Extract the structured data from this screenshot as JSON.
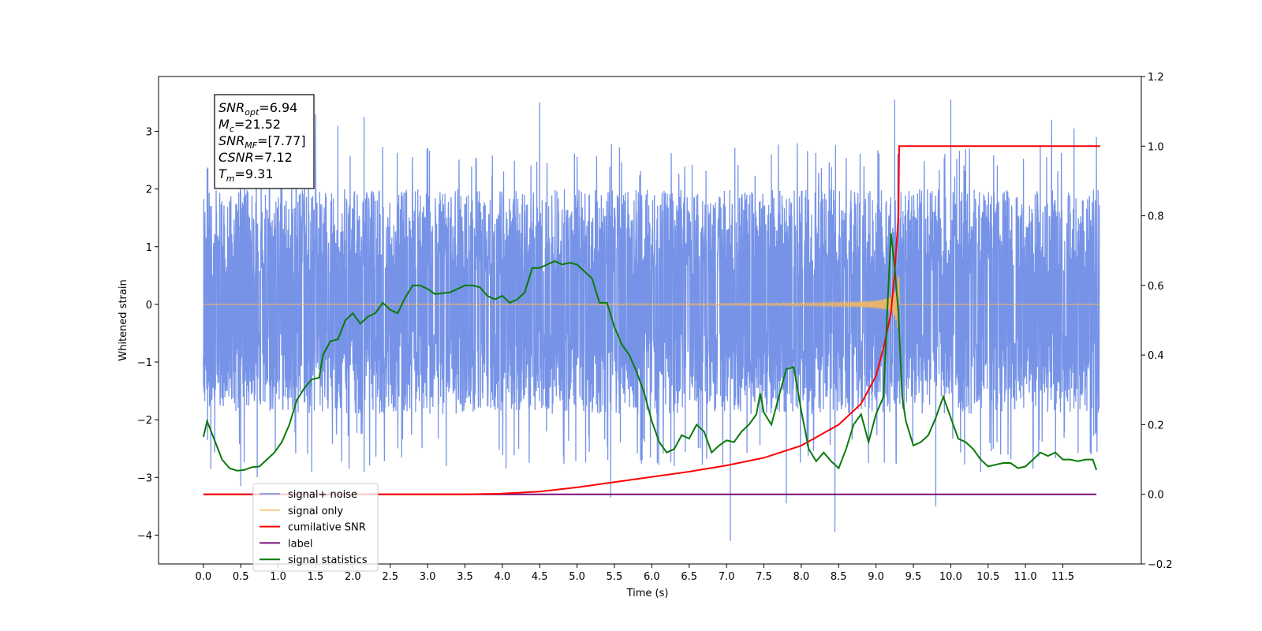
{
  "chart_data": {
    "type": "line",
    "title": "",
    "xlabel": "Time (s)",
    "ylabel": "Whitened strain",
    "xlim": [
      -0.6,
      12.55
    ],
    "ylim": [
      -4.5,
      3.95
    ],
    "y2lim": [
      -0.2,
      1.2
    ],
    "grid": false,
    "legend_position": "lower-left",
    "x_ticks": [
      0.0,
      0.5,
      1.0,
      1.5,
      2.0,
      2.5,
      3.0,
      3.5,
      4.0,
      4.5,
      5.0,
      5.5,
      6.0,
      6.5,
      7.0,
      7.5,
      8.0,
      8.5,
      9.0,
      9.5,
      10.0,
      10.5,
      11.0,
      11.5
    ],
    "x_tick_labels": [
      "0.0",
      "0.5",
      "1.0",
      "1.5",
      "2.0",
      "2.5",
      "3.0",
      "3.5",
      "4.0",
      "4.5",
      "5.0",
      "5.5",
      "6.0",
      "6.5",
      "7.0",
      "7.5",
      "8.0",
      "8.5",
      "9.0",
      "9.5",
      "10.0",
      "10.5",
      "11.0",
      "11.5"
    ],
    "y_ticks": [
      3,
      2,
      1,
      0,
      -1,
      -2,
      -3,
      -4
    ],
    "y_tick_labels": [
      "3",
      "2",
      "1",
      "0",
      "−1",
      "−2",
      "−3",
      "−4"
    ],
    "y2_ticks": [
      1.2,
      1.0,
      0.8,
      0.6,
      0.4,
      0.2,
      0.0,
      -0.2
    ],
    "y2_tick_labels": [
      "1.2",
      "1.0",
      "0.8",
      "0.6",
      "0.4",
      "0.2",
      "0.0",
      "−0.2"
    ],
    "series": [
      {
        "name": "signal+ noise",
        "axis": "left",
        "color": "#6f8de6",
        "description_points": {
          "envelope_upper": 2.0,
          "envelope_lower": -1.9,
          "spikes_up": [
            [
              0.05,
              2.35
            ],
            [
              0.55,
              2.85
            ],
            [
              1.05,
              2.9
            ],
            [
              1.5,
              3.3
            ],
            [
              1.8,
              3.1
            ],
            [
              2.15,
              3.25
            ],
            [
              4.5,
              3.5
            ],
            [
              7.6,
              2.6
            ],
            [
              9.25,
              3.55
            ],
            [
              10.0,
              3.55
            ],
            [
              11.35,
              3.2
            ],
            [
              11.65,
              3.05
            ],
            [
              11.95,
              2.9
            ]
          ],
          "spikes_down": [
            [
              0.1,
              -2.85
            ],
            [
              0.5,
              -3.15
            ],
            [
              0.72,
              -3.0
            ],
            [
              1.45,
              -2.9
            ],
            [
              1.95,
              -2.85
            ],
            [
              2.15,
              -2.9
            ],
            [
              3.25,
              -2.8
            ],
            [
              4.05,
              -2.85
            ],
            [
              5.45,
              -3.35
            ],
            [
              5.85,
              -2.7
            ],
            [
              6.3,
              -2.8
            ],
            [
              7.05,
              -4.1
            ],
            [
              7.8,
              -3.45
            ],
            [
              8.45,
              -3.95
            ],
            [
              8.9,
              -2.75
            ],
            [
              9.8,
              -3.5
            ],
            [
              10.4,
              -2.9
            ],
            [
              11.1,
              -2.85
            ]
          ]
        }
      },
      {
        "name": "signal only",
        "axis": "left",
        "color": "#f5b85f",
        "chirp_start": 0.0,
        "chirp_merger": 9.31,
        "peak_amplitude": 0.5
      },
      {
        "name": "cumilative SNR",
        "axis": "right",
        "color": "#ff0000",
        "x": [
          0.0,
          3.0,
          3.5,
          4.0,
          4.5,
          5.0,
          5.5,
          6.0,
          6.5,
          7.0,
          7.5,
          8.0,
          8.5,
          8.8,
          9.0,
          9.1,
          9.2,
          9.25,
          9.3,
          9.31,
          9.5,
          10.0,
          11.0,
          12.0
        ],
        "y": [
          0.0,
          0.0,
          0.0,
          0.002,
          0.008,
          0.02,
          0.035,
          0.05,
          0.065,
          0.083,
          0.105,
          0.14,
          0.2,
          0.26,
          0.34,
          0.42,
          0.52,
          0.64,
          0.8,
          1.0,
          1.0,
          1.0,
          1.0,
          1.0
        ]
      },
      {
        "name": "label",
        "axis": "right",
        "color": "#7b0f7b",
        "x": [
          0.0,
          11.95
        ],
        "y": [
          0.0,
          0.0
        ]
      },
      {
        "name": "signal statistics",
        "axis": "right",
        "color": "#0a7a0a",
        "x": [
          0.0,
          0.05,
          0.15,
          0.25,
          0.35,
          0.45,
          0.55,
          0.65,
          0.75,
          0.85,
          0.95,
          1.05,
          1.15,
          1.25,
          1.35,
          1.45,
          1.55,
          1.6,
          1.7,
          1.8,
          1.9,
          2.0,
          2.1,
          2.2,
          2.3,
          2.4,
          2.5,
          2.6,
          2.7,
          2.8,
          2.9,
          3.0,
          3.1,
          3.2,
          3.3,
          3.4,
          3.5,
          3.6,
          3.7,
          3.8,
          3.9,
          4.0,
          4.1,
          4.2,
          4.3,
          4.4,
          4.5,
          4.6,
          4.7,
          4.8,
          4.9,
          5.0,
          5.1,
          5.2,
          5.3,
          5.4,
          5.5,
          5.6,
          5.7,
          5.8,
          5.9,
          6.0,
          6.1,
          6.2,
          6.3,
          6.4,
          6.5,
          6.6,
          6.7,
          6.8,
          6.9,
          7.0,
          7.1,
          7.2,
          7.3,
          7.4,
          7.45,
          7.5,
          7.6,
          7.7,
          7.8,
          7.9,
          8.0,
          8.1,
          8.2,
          8.3,
          8.4,
          8.5,
          8.6,
          8.7,
          8.8,
          8.9,
          9.0,
          9.1,
          9.15,
          9.2,
          9.25,
          9.3,
          9.35,
          9.4,
          9.5,
          9.6,
          9.7,
          9.8,
          9.9,
          10.0,
          10.1,
          10.2,
          10.3,
          10.4,
          10.5,
          10.6,
          10.7,
          10.8,
          10.9,
          11.0,
          11.1,
          11.2,
          11.3,
          11.4,
          11.5,
          11.6,
          11.7,
          11.8,
          11.9,
          11.95
        ],
        "y": [
          0.165,
          0.21,
          0.155,
          0.1,
          0.075,
          0.068,
          0.07,
          0.078,
          0.08,
          0.1,
          0.12,
          0.15,
          0.2,
          0.27,
          0.305,
          0.33,
          0.335,
          0.4,
          0.44,
          0.445,
          0.5,
          0.52,
          0.49,
          0.51,
          0.52,
          0.55,
          0.53,
          0.52,
          0.565,
          0.6,
          0.6,
          0.59,
          0.575,
          0.578,
          0.58,
          0.59,
          0.6,
          0.6,
          0.595,
          0.57,
          0.56,
          0.57,
          0.55,
          0.56,
          0.58,
          0.65,
          0.65,
          0.66,
          0.67,
          0.66,
          0.665,
          0.66,
          0.64,
          0.62,
          0.55,
          0.55,
          0.48,
          0.43,
          0.4,
          0.35,
          0.29,
          0.21,
          0.15,
          0.12,
          0.13,
          0.17,
          0.16,
          0.2,
          0.18,
          0.12,
          0.14,
          0.155,
          0.15,
          0.18,
          0.2,
          0.23,
          0.29,
          0.235,
          0.2,
          0.28,
          0.36,
          0.365,
          0.24,
          0.13,
          0.095,
          0.12,
          0.095,
          0.075,
          0.13,
          0.2,
          0.23,
          0.15,
          0.23,
          0.28,
          0.52,
          0.75,
          0.65,
          0.52,
          0.28,
          0.21,
          0.14,
          0.15,
          0.17,
          0.22,
          0.28,
          0.22,
          0.16,
          0.15,
          0.13,
          0.1,
          0.08,
          0.085,
          0.09,
          0.09,
          0.075,
          0.08,
          0.1,
          0.12,
          0.11,
          0.12,
          0.1,
          0.1,
          0.095,
          0.1,
          0.1,
          0.07
        ]
      }
    ],
    "legend_entries": [
      "signal+ noise",
      "signal only",
      "cumilative SNR",
      "label",
      "signal statistics"
    ],
    "annotation_lines": [
      {
        "main": "SNR",
        "sub": "opt",
        "value": "=6.94"
      },
      {
        "main": "M",
        "sub": "c",
        "value": "=21.52"
      },
      {
        "main": "SNR",
        "sub": "MF",
        "value": "=[7.77]"
      },
      {
        "main": "CSNR",
        "sub": "",
        "value": "=7.12"
      },
      {
        "main": "T",
        "sub": "m",
        "value": "=9.31"
      }
    ]
  }
}
